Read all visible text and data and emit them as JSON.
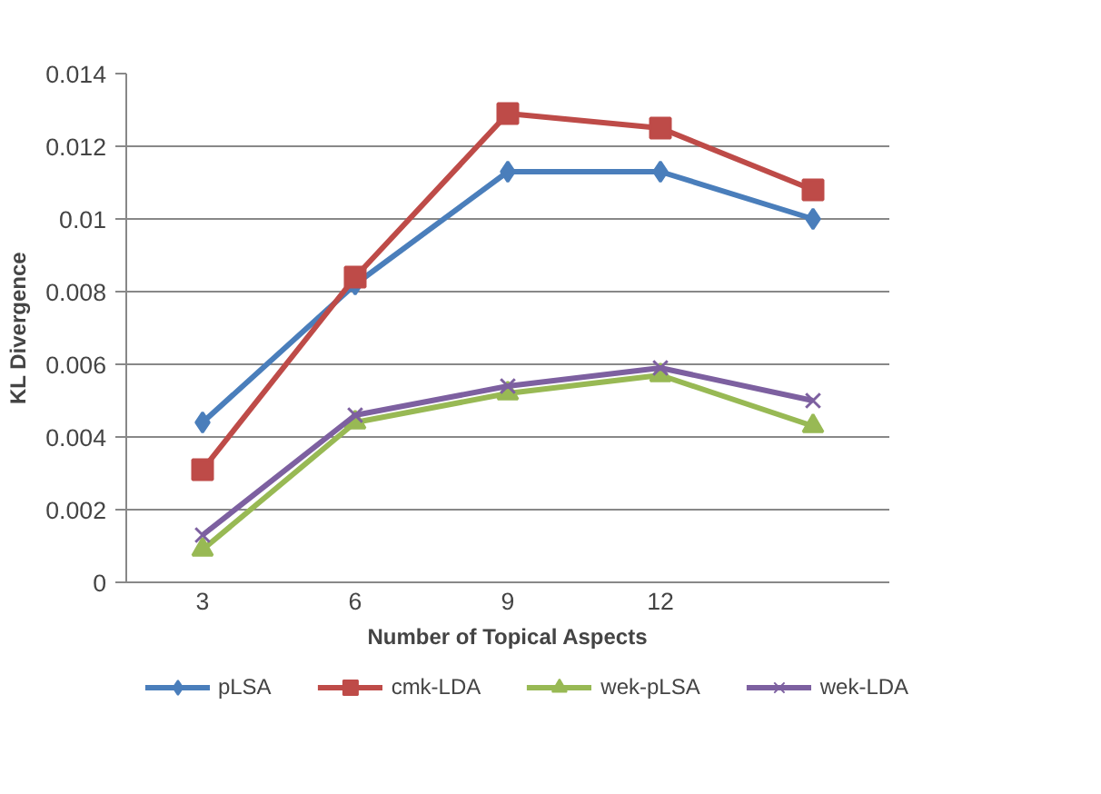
{
  "chart_data": {
    "type": "line",
    "xlabel": "Number of Topical Aspects",
    "ylabel": "KL Divergence",
    "categories": [
      "3",
      "6",
      "9",
      "12",
      null
    ],
    "series": [
      {
        "name": "pLSA",
        "color": "#4a7ebb",
        "marker": "diamond",
        "values": [
          0.0044,
          0.0082,
          0.0113,
          0.0113,
          0.01
        ]
      },
      {
        "name": "cmk-LDA",
        "color": "#be4b48",
        "marker": "square",
        "values": [
          0.0031,
          0.0084,
          0.0129,
          0.0125,
          0.0108
        ]
      },
      {
        "name": "wek-pLSA",
        "color": "#98b954",
        "marker": "triangle",
        "values": [
          0.0009,
          0.0044,
          0.0052,
          0.0057,
          0.0043
        ]
      },
      {
        "name": "wek-LDA",
        "color": "#7d60a0",
        "marker": "cross",
        "values": [
          0.0013,
          0.0046,
          0.0054,
          0.0059,
          0.005
        ]
      }
    ],
    "ylim": [
      0,
      0.014
    ],
    "yticks": [
      0,
      0.002,
      0.004,
      0.006,
      0.008,
      0.01,
      0.012,
      0.014
    ],
    "grid": "y",
    "legend": "bottom",
    "line_style": "solid"
  }
}
